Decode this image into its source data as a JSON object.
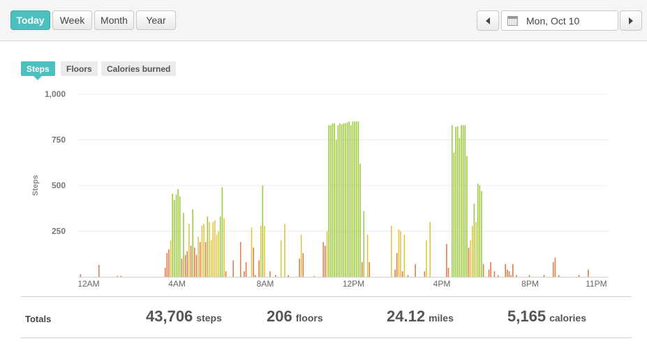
{
  "toolbar": {
    "ranges": [
      {
        "label": "Today",
        "active": true
      },
      {
        "label": "Week",
        "active": false
      },
      {
        "label": "Month",
        "active": false
      },
      {
        "label": "Year",
        "active": false
      }
    ],
    "date": "Mon, Oct 10",
    "prev_icon": "triangle-left-icon",
    "next_icon": "triangle-right-icon",
    "calendar_icon": "calendar-icon"
  },
  "tabs": [
    {
      "label": "Steps",
      "active": true
    },
    {
      "label": "Floors",
      "active": false
    },
    {
      "label": "Calories burned",
      "active": false
    }
  ],
  "chart_data": {
    "type": "bar",
    "xlabel": "",
    "ylabel": "Steps",
    "ylim": [
      0,
      1000
    ],
    "yticks": [
      250,
      500,
      750,
      1000
    ],
    "ytick_labels": [
      "250",
      "500",
      "750",
      "1,000"
    ],
    "xticks": [
      0,
      240,
      480,
      720,
      960,
      1200,
      1380
    ],
    "xtick_labels": [
      "12AM",
      "4AM",
      "8AM",
      "12PM",
      "4PM",
      "8PM",
      "11PM"
    ],
    "x_unit": "minutes since midnight",
    "grid": true,
    "colors": {
      "low": "#e07c4a",
      "mid": "#e3c440",
      "high": "#9ccb3c"
    },
    "bars": [
      [
        5,
        15
      ],
      [
        55,
        65
      ],
      [
        105,
        5
      ],
      [
        115,
        5
      ],
      [
        235,
        50
      ],
      [
        240,
        130
      ],
      [
        245,
        150
      ],
      [
        250,
        200
      ],
      [
        255,
        455
      ],
      [
        260,
        420
      ],
      [
        265,
        450
      ],
      [
        270,
        480
      ],
      [
        275,
        440
      ],
      [
        280,
        100
      ],
      [
        285,
        350
      ],
      [
        290,
        120
      ],
      [
        295,
        140
      ],
      [
        300,
        290
      ],
      [
        305,
        170
      ],
      [
        310,
        370
      ],
      [
        315,
        160
      ],
      [
        320,
        120
      ],
      [
        325,
        220
      ],
      [
        330,
        190
      ],
      [
        335,
        280
      ],
      [
        340,
        290
      ],
      [
        345,
        190
      ],
      [
        350,
        330
      ],
      [
        355,
        300
      ],
      [
        360,
        200
      ],
      [
        365,
        300
      ],
      [
        370,
        310
      ],
      [
        375,
        230
      ],
      [
        380,
        250
      ],
      [
        385,
        330
      ],
      [
        390,
        490
      ],
      [
        395,
        320
      ],
      [
        400,
        30
      ],
      [
        420,
        90
      ],
      [
        440,
        190
      ],
      [
        450,
        30
      ],
      [
        455,
        80
      ],
      [
        470,
        270
      ],
      [
        475,
        160
      ],
      [
        480,
        10
      ],
      [
        490,
        90
      ],
      [
        495,
        280
      ],
      [
        500,
        500
      ],
      [
        505,
        280
      ],
      [
        520,
        30
      ],
      [
        535,
        10
      ],
      [
        550,
        200
      ],
      [
        560,
        290
      ],
      [
        570,
        10
      ],
      [
        600,
        100
      ],
      [
        605,
        230
      ],
      [
        610,
        130
      ],
      [
        640,
        5
      ],
      [
        665,
        190
      ],
      [
        670,
        170
      ],
      [
        675,
        250
      ],
      [
        680,
        830
      ],
      [
        685,
        830
      ],
      [
        690,
        840
      ],
      [
        695,
        840
      ],
      [
        700,
        750
      ],
      [
        705,
        830
      ],
      [
        710,
        840
      ],
      [
        715,
        835
      ],
      [
        720,
        840
      ],
      [
        725,
        840
      ],
      [
        730,
        845
      ],
      [
        735,
        850
      ],
      [
        740,
        830
      ],
      [
        745,
        850
      ],
      [
        750,
        850
      ],
      [
        755,
        850
      ],
      [
        760,
        850
      ],
      [
        765,
        620
      ],
      [
        770,
        80
      ],
      [
        775,
        360
      ],
      [
        785,
        230
      ],
      [
        790,
        80
      ],
      [
        850,
        280
      ],
      [
        860,
        40
      ],
      [
        865,
        130
      ],
      [
        870,
        260
      ],
      [
        875,
        250
      ],
      [
        880,
        30
      ],
      [
        885,
        230
      ],
      [
        895,
        10
      ],
      [
        915,
        70
      ],
      [
        940,
        30
      ],
      [
        945,
        200
      ],
      [
        955,
        300
      ],
      [
        1000,
        180
      ],
      [
        1005,
        50
      ],
      [
        1015,
        830
      ],
      [
        1020,
        680
      ],
      [
        1025,
        820
      ],
      [
        1030,
        825
      ],
      [
        1035,
        760
      ],
      [
        1040,
        830
      ],
      [
        1045,
        830
      ],
      [
        1050,
        830
      ],
      [
        1055,
        660
      ],
      [
        1060,
        160
      ],
      [
        1065,
        200
      ],
      [
        1070,
        280
      ],
      [
        1075,
        400
      ],
      [
        1080,
        300
      ],
      [
        1085,
        510
      ],
      [
        1090,
        500
      ],
      [
        1095,
        470
      ],
      [
        1100,
        70
      ],
      [
        1115,
        40
      ],
      [
        1120,
        80
      ],
      [
        1130,
        30
      ],
      [
        1140,
        10
      ],
      [
        1160,
        70
      ],
      [
        1165,
        40
      ],
      [
        1170,
        30
      ],
      [
        1175,
        10
      ],
      [
        1180,
        70
      ],
      [
        1190,
        10
      ],
      [
        1225,
        10
      ],
      [
        1265,
        10
      ],
      [
        1290,
        80
      ],
      [
        1295,
        105
      ],
      [
        1305,
        10
      ],
      [
        1360,
        10
      ],
      [
        1385,
        40
      ]
    ]
  },
  "totals": {
    "label": "Totals",
    "items": [
      {
        "value": "43,706",
        "unit": "steps"
      },
      {
        "value": "206",
        "unit": "floors"
      },
      {
        "value": "24.12",
        "unit": "miles"
      },
      {
        "value": "5,165",
        "unit": "calories"
      }
    ]
  }
}
